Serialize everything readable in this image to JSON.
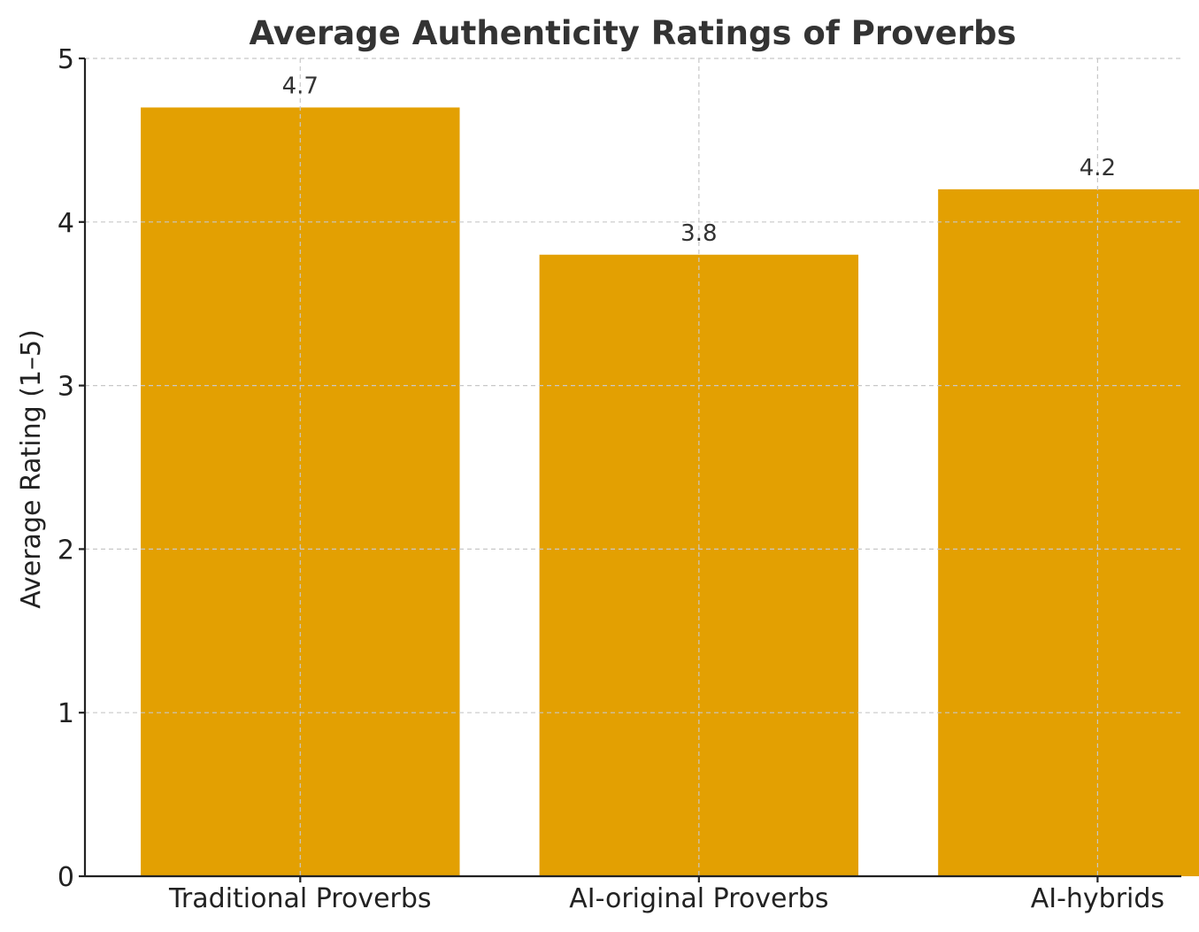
{
  "chart_data": {
    "type": "bar",
    "title": "Average Authenticity Ratings of Proverbs",
    "categories": [
      "Traditional Proverbs",
      "AI-original Proverbs",
      "AI-hybrids"
    ],
    "values": [
      4.7,
      3.8,
      4.2
    ],
    "data_labels": [
      "4.7",
      "3.8",
      "4.2"
    ],
    "xlabel": "",
    "ylabel": "Average Rating (1–5)",
    "ylim": [
      0,
      5
    ],
    "yticks": [
      0,
      1,
      2,
      3,
      4,
      5
    ],
    "grid": true,
    "bar_color": "#E3A002"
  }
}
